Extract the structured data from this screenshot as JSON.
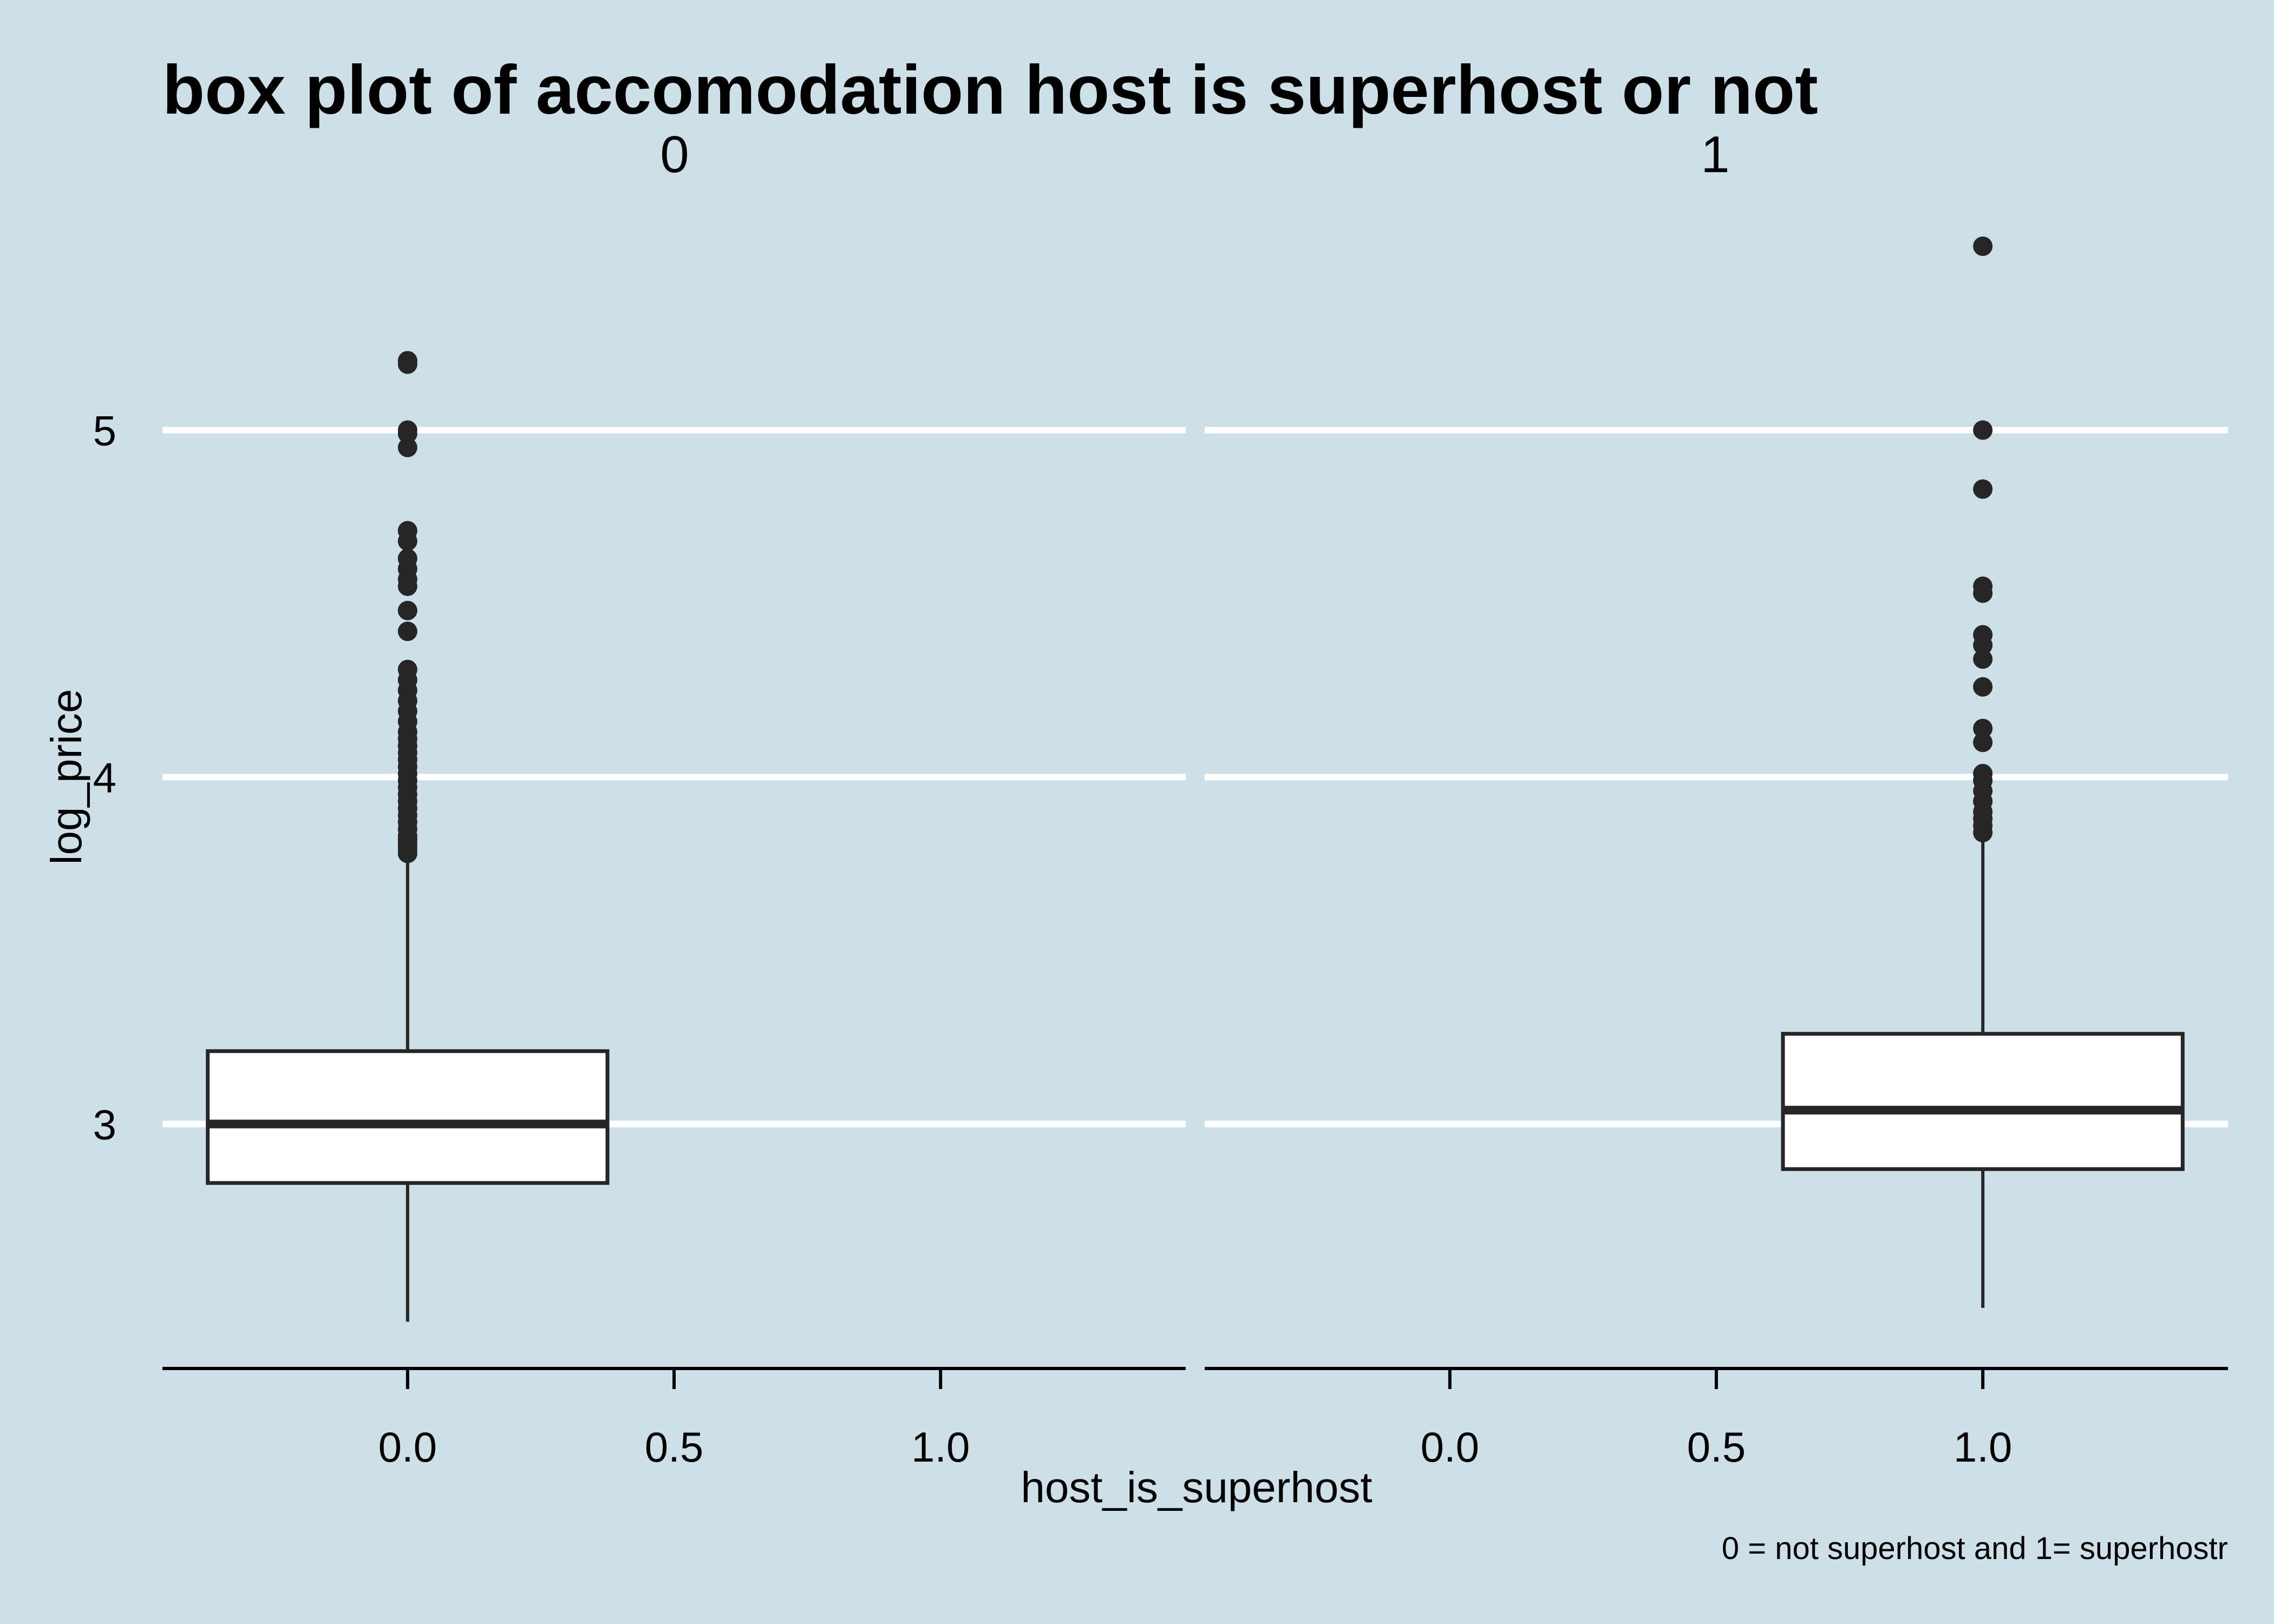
{
  "chart_data": {
    "type": "box",
    "title": "box plot of accomodation host is superhost or not",
    "xlabel": "host_is_superhost",
    "ylabel": "log_price",
    "caption": "0 = not superhost and 1= superhostr",
    "ylim": [
      2.3,
      5.6
    ],
    "y_ticks": [
      3,
      4,
      5
    ],
    "x_ticks": [
      0.0,
      0.5,
      1.0
    ],
    "x_tick_labels": [
      "0.0",
      "0.5",
      "1.0"
    ],
    "xlim": [
      -0.46,
      1.46
    ],
    "grid": "horizontal-major",
    "facets": [
      {
        "label": "0",
        "x": 0,
        "box": {
          "q1": 2.83,
          "median": 3.0,
          "q3": 3.21,
          "whisker_low": 2.43,
          "whisker_high": 3.78
        },
        "outliers": [
          3.78,
          3.79,
          3.8,
          3.81,
          3.82,
          3.83,
          3.85,
          3.87,
          3.89,
          3.91,
          3.93,
          3.95,
          3.97,
          3.99,
          4.01,
          4.03,
          4.05,
          4.07,
          4.09,
          4.11,
          4.13,
          4.16,
          4.19,
          4.22,
          4.25,
          4.28,
          4.31,
          4.42,
          4.48,
          4.55,
          4.57,
          4.6,
          4.63,
          4.68,
          4.71,
          4.95,
          4.99,
          5.0,
          5.19,
          5.2
        ]
      },
      {
        "label": "1",
        "x": 1,
        "box": {
          "q1": 2.87,
          "median": 3.04,
          "q3": 3.26,
          "whisker_low": 2.47,
          "whisker_high": 3.84
        },
        "outliers": [
          3.84,
          3.86,
          3.88,
          3.9,
          3.93,
          3.96,
          3.99,
          4.01,
          4.1,
          4.14,
          4.26,
          4.34,
          4.38,
          4.41,
          4.53,
          4.55,
          4.83,
          5.0,
          5.53
        ]
      }
    ]
  }
}
